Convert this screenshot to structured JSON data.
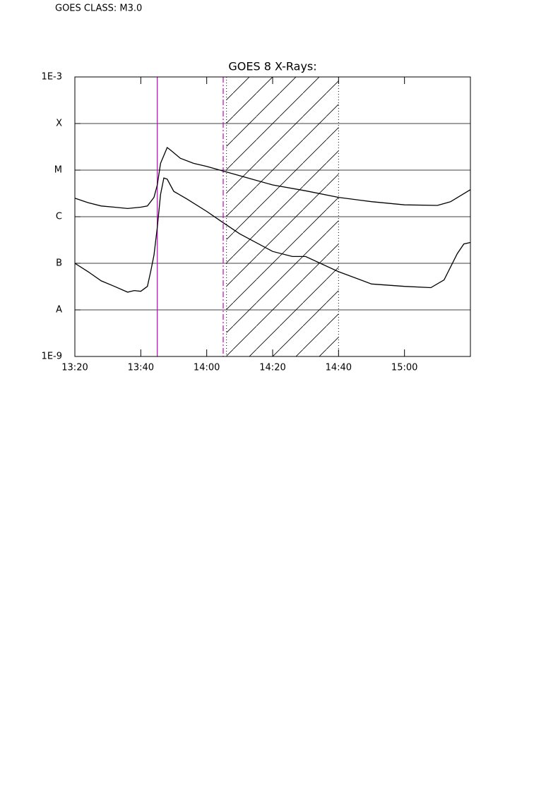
{
  "header": "GOES CLASS: M3.0",
  "chart_data": {
    "type": "line",
    "title": "GOES 8 X-Rays:",
    "log_y": true,
    "grid": true,
    "xlim": [
      "13:20",
      "15:20"
    ],
    "xticks": [
      "13:20",
      "13:40",
      "14:00",
      "14:20",
      "14:40",
      "15:00"
    ],
    "ylim": [
      1e-09,
      0.001
    ],
    "yticks": [
      {
        "value": 1e-09,
        "label": "1E-9"
      },
      {
        "value": 1e-08,
        "label": "A"
      },
      {
        "value": 1e-07,
        "label": "B"
      },
      {
        "value": 1e-06,
        "label": "C"
      },
      {
        "value": 1e-05,
        "label": "M"
      },
      {
        "value": 0.0001,
        "label": "X"
      },
      {
        "value": 0.001,
        "label": "1E-3"
      }
    ],
    "vlines": [
      {
        "x": "13:45",
        "color": "#c000c0",
        "dash": "none"
      },
      {
        "x": "14:05",
        "color": "#c000c0",
        "dash": "8 3 2 3"
      }
    ],
    "shaded": {
      "x": [
        "14:06",
        "14:40"
      ],
      "color": "#000000"
    },
    "series": [
      {
        "color": "#000000",
        "x": [
          "13:20",
          "13:24",
          "13:28",
          "13:32",
          "13:36",
          "13:40",
          "13:42",
          "13:44",
          "13:45",
          "13:46",
          "13:48",
          "13:49",
          "13:52",
          "13:56",
          "14:00",
          "14:04",
          "14:10",
          "14:20",
          "14:30",
          "14:40",
          "14:50",
          "15:00",
          "15:10",
          "15:14",
          "15:20"
        ],
        "values": [
          2.5e-06,
          2e-06,
          1.7e-06,
          1.6e-06,
          1.5e-06,
          1.6e-06,
          1.7e-06,
          2.6e-06,
          4.8e-06,
          1.4e-05,
          3.05e-05,
          2.7e-05,
          1.8e-05,
          1.4e-05,
          1.2e-05,
          1e-05,
          7.6e-06,
          4.8e-06,
          3.6e-06,
          2.6e-06,
          2.1e-06,
          1.8e-06,
          1.75e-06,
          2.1e-06,
          3.8e-06
        ]
      },
      {
        "color": "#000000",
        "x": [
          "13:20",
          "13:24",
          "13:28",
          "13:32",
          "13:36",
          "13:38",
          "13:40",
          "13:42",
          "13:43",
          "13:44",
          "13:45",
          "13:46",
          "13:47",
          "13:48",
          "13:50",
          "13:54",
          "14:00",
          "14:04",
          "14:10",
          "14:20",
          "14:26",
          "14:30",
          "14:40",
          "14:50",
          "15:00",
          "15:08",
          "15:12",
          "15:16",
          "15:18",
          "15:20"
        ],
        "values": [
          1e-07,
          6.6e-08,
          4.2e-08,
          3.2e-08,
          2.4e-08,
          2.6e-08,
          2.5e-08,
          3.2e-08,
          6.6e-08,
          1.5e-07,
          5.9e-07,
          3e-06,
          6.8e-06,
          6.4e-06,
          3.5e-06,
          2.4e-06,
          1.3e-06,
          8.3e-07,
          4.3e-07,
          1.8e-07,
          1.4e-07,
          1.4e-07,
          6.6e-08,
          3.6e-08,
          3.2e-08,
          3e-08,
          4.4e-08,
          1.6e-07,
          2.6e-07,
          2.8e-07
        ]
      }
    ]
  }
}
